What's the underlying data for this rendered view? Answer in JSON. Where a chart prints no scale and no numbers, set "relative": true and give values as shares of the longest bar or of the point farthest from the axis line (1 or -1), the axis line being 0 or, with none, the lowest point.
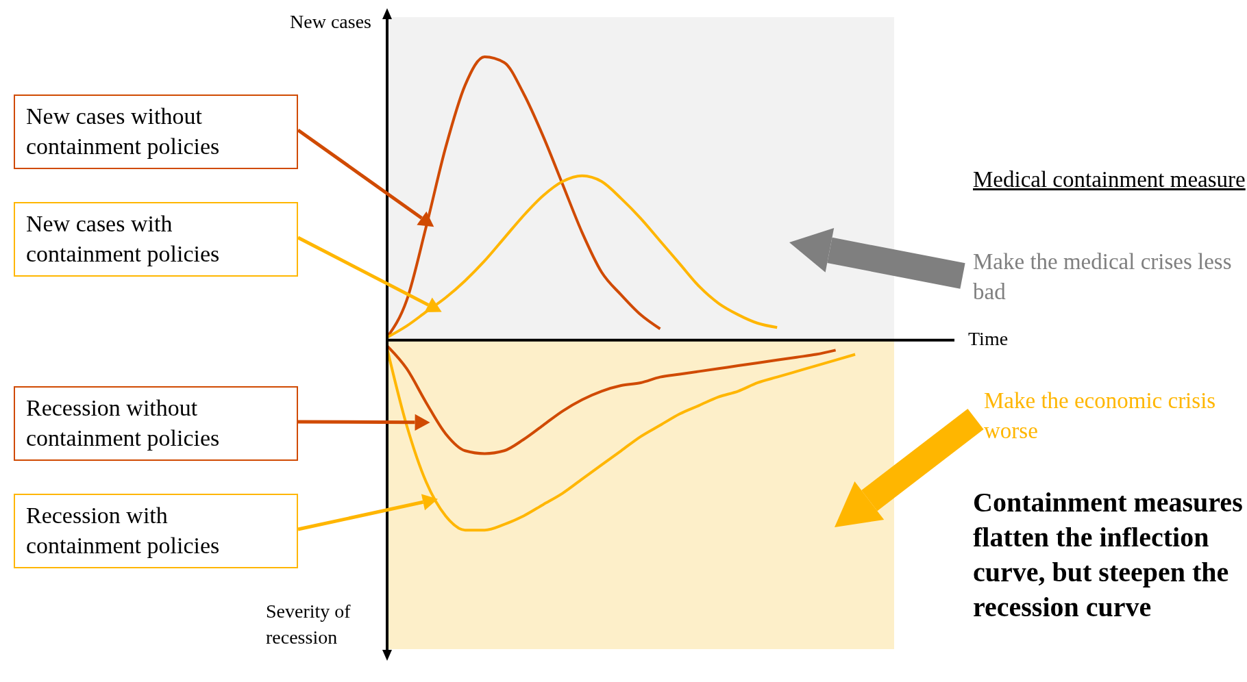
{
  "chart_data": {
    "type": "line",
    "relative": true,
    "xlabel": "Time",
    "ylabel": "New cases",
    "legend": "left",
    "categories": [
      null,
      null,
      null,
      null,
      null,
      null,
      null,
      null,
      null,
      null,
      null,
      null,
      null,
      null,
      null,
      null,
      null,
      null,
      null,
      null,
      null,
      null,
      null,
      null,
      null,
      null,
      null
    ],
    "series": [
      {
        "name": "New cases without containment policies",
        "color": "#d04a02",
        "values": [
          0.01,
          0.14,
          0.4,
          0.68,
          0.9,
          1,
          0.98,
          0.87,
          0.72,
          0.55,
          0.38,
          0.24,
          0.16,
          0.09,
          0.04,
          null,
          null,
          null,
          null,
          null,
          null,
          null,
          null,
          null,
          null,
          null,
          null
        ]
      },
      {
        "name": "New cases with containment policies",
        "color": "#ffb600",
        "values": [
          0.01,
          0.05,
          0.1,
          0.15,
          0.21,
          0.28,
          0.36,
          0.44,
          0.51,
          0.56,
          0.58,
          0.56,
          0.5,
          0.43,
          0.35,
          0.27,
          0.19,
          0.13,
          0.09,
          0.06,
          0.045,
          null,
          null,
          null,
          null,
          null,
          null
        ]
      },
      {
        "name": "Recession without containment policies",
        "color": "#d04a02",
        "values": [
          -0.02,
          -0.1,
          -0.22,
          -0.33,
          -0.39,
          -0.4,
          -0.39,
          -0.35,
          -0.3,
          -0.25,
          -0.21,
          -0.18,
          -0.16,
          -0.15,
          -0.13,
          -0.12,
          -0.11,
          -0.1,
          -0.09,
          -0.08,
          -0.07,
          -0.06,
          -0.05,
          -0.035,
          null,
          null,
          null
        ]
      },
      {
        "name": "Recession with containment policies",
        "color": "#ffb600",
        "values": [
          -0.03,
          -0.3,
          -0.5,
          -0.62,
          -0.67,
          -0.67,
          -0.65,
          -0.62,
          -0.58,
          -0.54,
          -0.49,
          -0.44,
          -0.39,
          -0.34,
          -0.3,
          -0.26,
          -0.23,
          -0.2,
          -0.18,
          -0.15,
          -0.13,
          -0.11,
          -0.09,
          -0.07,
          -0.05,
          null,
          null
        ]
      }
    ],
    "bands": [
      {
        "axis": "y",
        "from": 0,
        "to": 1.14,
        "color": "#f2f2f2"
      },
      {
        "axis": "y",
        "from": -1.09,
        "to": 0,
        "color": "#fdefc9"
      }
    ],
    "annotations": [
      "Severity of recession",
      "Medical containment measure",
      "Make the medical crises less bad",
      "Make the economic crisis worse",
      "Containment measures flatten the inflection curve, but steepen the recession curve"
    ]
  }
}
